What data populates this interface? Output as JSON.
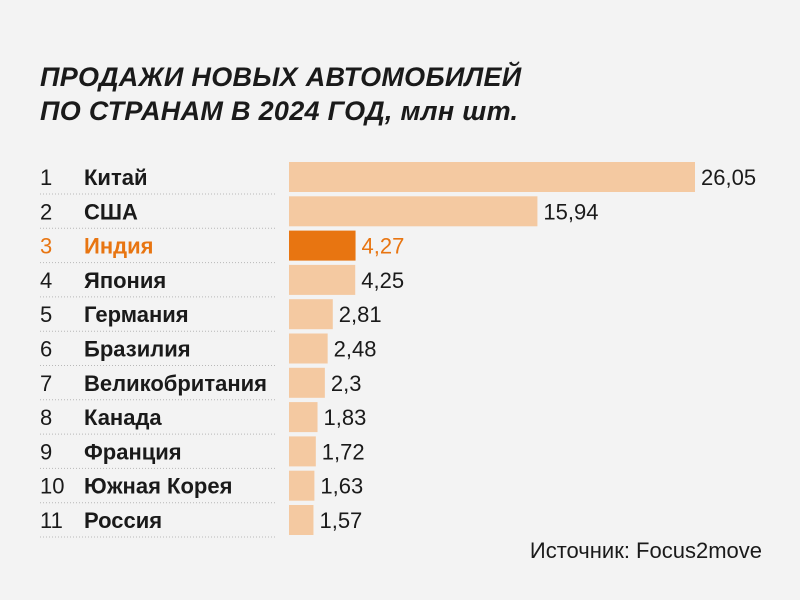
{
  "title_line1": "ПРОДАЖИ НОВЫХ АВТОМОБИЛЕЙ",
  "title_line2": "ПО СТРАНАМ В 2024 ГОД, млн шт.",
  "source": "Источник: Focus2move",
  "colors": {
    "bar": "#f4c9a1",
    "highlight_bar": "#e87511",
    "highlight_text": "#e87511",
    "text": "#1a1a1a",
    "separator": "#b8b8b8"
  },
  "chart_data": {
    "type": "bar",
    "orientation": "horizontal",
    "title": "ПРОДАЖИ НОВЫХ АВТОМОБИЛЕЙ ПО СТРАНАМ В 2024 ГОД, млн шт.",
    "ranks": [
      "1",
      "2",
      "3",
      "4",
      "5",
      "6",
      "7",
      "8",
      "9",
      "10",
      "11"
    ],
    "categories": [
      "Китай",
      "США",
      "Индия",
      "Япония",
      "Германия",
      "Бразилия",
      "Великобритания",
      "Канада",
      "Франция",
      "Южная Корея",
      "Россия"
    ],
    "values": [
      26.05,
      15.94,
      4.27,
      4.25,
      2.81,
      2.48,
      2.3,
      1.83,
      1.72,
      1.63,
      1.57
    ],
    "value_labels": [
      "26,05",
      "15,94",
      "4,27",
      "4,25",
      "2,81",
      "2,48",
      "2,3",
      "1,83",
      "1,72",
      "1,63",
      "1,57"
    ],
    "highlight_category": "Индия",
    "xlim": [
      0,
      26.05
    ],
    "grid": false,
    "legend": "none"
  }
}
